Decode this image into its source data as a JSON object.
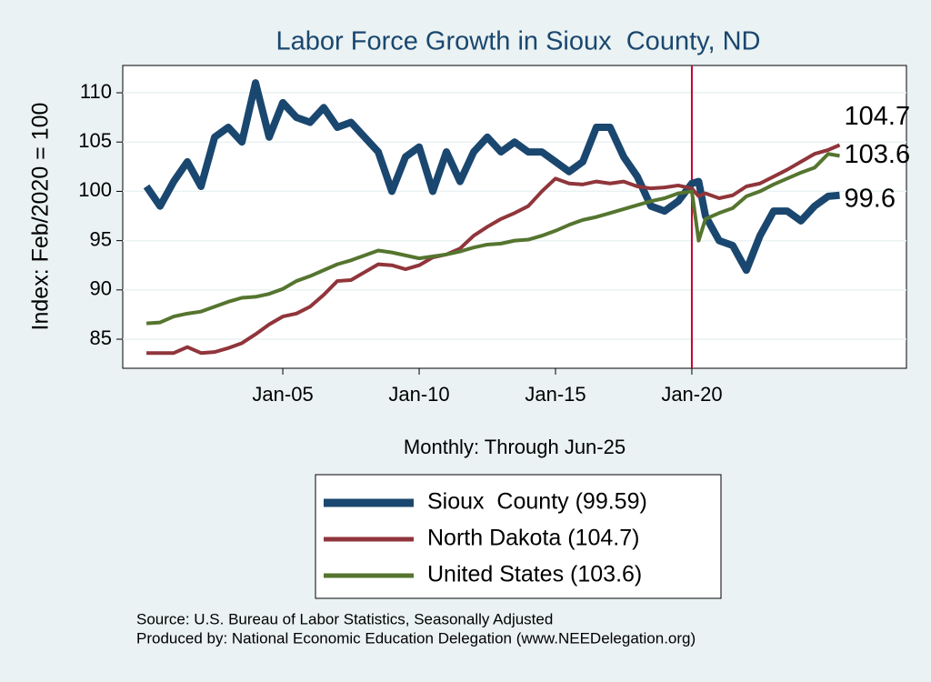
{
  "chart_data": {
    "type": "line",
    "title": "Labor Force Growth in Sioux  County, ND",
    "xlabel": "Monthly: Through Jun-25",
    "ylabel": "Index: Feb/2020 = 100",
    "notes": [
      "Source: U.S. Bureau of Labor Statistics, Seasonally Adjusted",
      "Produced by: National Economic Education Delegation (www.NEEDelegation.org)"
    ],
    "x": [
      2000,
      2000.5,
      2001,
      2001.5,
      2002,
      2002.5,
      2003,
      2003.5,
      2004,
      2004.5,
      2005,
      2005.5,
      2006,
      2006.5,
      2007,
      2007.5,
      2008,
      2008.5,
      2009,
      2009.5,
      2010,
      2010.5,
      2011,
      2011.5,
      2012,
      2012.5,
      2013,
      2013.5,
      2014,
      2014.5,
      2015,
      2015.5,
      2016,
      2016.5,
      2017,
      2017.5,
      2018,
      2018.5,
      2019,
      2019.5,
      2020,
      2020.25,
      2020.5,
      2021,
      2021.5,
      2022,
      2022.5,
      2023,
      2023.5,
      2024,
      2024.5,
      2025,
      2025.42
    ],
    "series": [
      {
        "name": "Sioux  County (99.59)",
        "color": "#1a476f",
        "width": 8,
        "end_label": "99.6",
        "values": [
          100.5,
          98.5,
          101,
          103,
          100.5,
          105.5,
          106.5,
          105,
          111,
          105.5,
          109,
          107.5,
          107,
          108.5,
          106.5,
          107,
          105.5,
          104,
          100,
          103.5,
          104.5,
          100,
          104,
          101,
          104,
          105.5,
          104,
          105,
          104,
          104,
          103,
          102,
          103,
          106.5,
          106.5,
          103.5,
          101.5,
          98.5,
          98,
          99,
          100.8,
          101,
          97.5,
          95,
          94.5,
          92,
          95.5,
          98,
          98,
          97,
          98.5,
          99.5,
          99.6
        ]
      },
      {
        "name": "North Dakota (104.7)",
        "color": "#90353b",
        "width": 4,
        "end_label": "104.7",
        "values": [
          83.6,
          83.6,
          83.6,
          84.2,
          83.6,
          83.7,
          84.1,
          84.6,
          85.5,
          86.5,
          87.3,
          87.6,
          88.3,
          89.5,
          90.9,
          91.0,
          91.8,
          92.6,
          92.5,
          92.1,
          92.5,
          93.3,
          93.6,
          94.2,
          95.5,
          96.4,
          97.2,
          97.8,
          98.5,
          100.0,
          101.3,
          100.8,
          100.7,
          101.0,
          100.8,
          101.0,
          100.5,
          100.3,
          100.4,
          100.6,
          100.3,
          99.5,
          99.8,
          99.3,
          99.6,
          100.5,
          100.8,
          101.5,
          102.2,
          103.0,
          103.8,
          104.2,
          104.7
        ]
      },
      {
        "name": "United States (103.6)",
        "color": "#55752f",
        "width": 4,
        "end_label": "103.6",
        "values": [
          86.6,
          86.7,
          87.3,
          87.6,
          87.8,
          88.3,
          88.8,
          89.2,
          89.3,
          89.6,
          90.1,
          90.9,
          91.4,
          92.0,
          92.6,
          93.0,
          93.5,
          94.0,
          93.8,
          93.5,
          93.2,
          93.4,
          93.6,
          93.9,
          94.3,
          94.6,
          94.7,
          95.0,
          95.1,
          95.5,
          96.0,
          96.6,
          97.1,
          97.4,
          97.8,
          98.2,
          98.6,
          99.0,
          99.3,
          99.8,
          100.0,
          95.0,
          97.2,
          97.8,
          98.3,
          99.5,
          100.0,
          100.7,
          101.3,
          101.9,
          102.4,
          103.8,
          103.6
        ]
      }
    ],
    "xlim": [
      1999.13,
      2027.87
    ],
    "xticks": [
      {
        "value": 2005,
        "label": "Jan-05"
      },
      {
        "value": 2010,
        "label": "Jan-10"
      },
      {
        "value": 2015,
        "label": "Jan-15"
      },
      {
        "value": 2020,
        "label": "Jan-20"
      }
    ],
    "ylim": [
      82.05,
      112.77
    ],
    "yticks": [
      85,
      90,
      95,
      100,
      105,
      110
    ],
    "vline": 2020,
    "vline_color": "#c10534",
    "grid": true
  }
}
